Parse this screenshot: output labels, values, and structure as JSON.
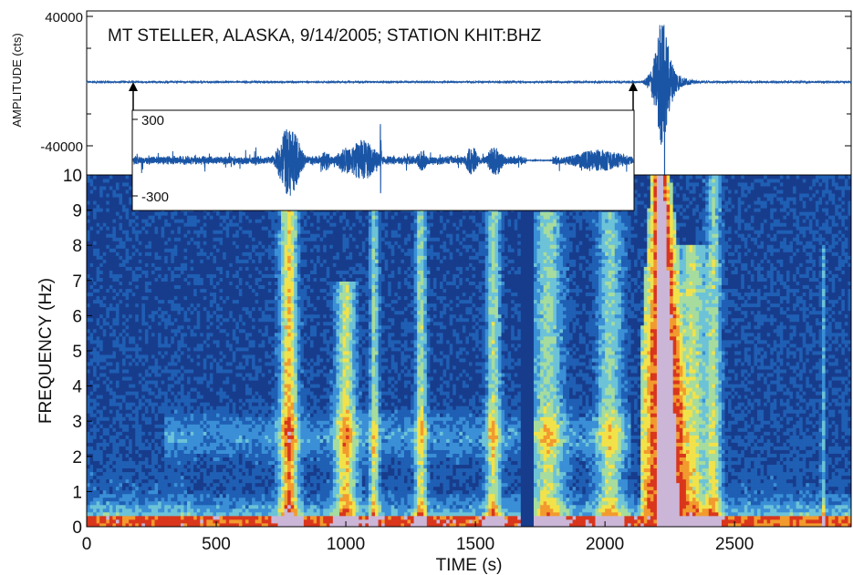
{
  "title": "MT STELLER, ALASKA, 9/14/2005;  STATION KHIT:BHZ",
  "chart_data": [
    {
      "type": "line",
      "panel": "seismogram",
      "ylabel": "AMPLITUDE (cts)",
      "ylim": [
        -40000,
        40000
      ],
      "xlim": [
        0,
        2950
      ],
      "yticks": [
        {
          "value": 40000,
          "label": "40000"
        },
        {
          "value": -40000,
          "label": "-40000"
        }
      ],
      "envelope": {
        "t": [
          0,
          2140,
          2160,
          2180,
          2200,
          2210,
          2220,
          2230,
          2245,
          2260,
          2280,
          2300,
          2330,
          2360,
          2950
        ],
        "amp": [
          400,
          400,
          2500,
          9000,
          22000,
          38000,
          40000,
          36000,
          22000,
          12000,
          6000,
          3000,
          1500,
          600,
          400
        ]
      },
      "vertical_lines": [
        {
          "t": 2230,
          "from": -40000,
          "to": 0
        }
      ],
      "inset_window": [
        180,
        2100
      ]
    },
    {
      "type": "line",
      "panel": "inset-zoom",
      "ylim": [
        -300,
        300
      ],
      "xlim": [
        180,
        2100
      ],
      "yticks": [
        {
          "value": 300,
          "label": "300"
        },
        {
          "value": -300,
          "label": "-300"
        }
      ],
      "noise_level": 25,
      "bursts": [
        {
          "t": 780,
          "amp": 260,
          "width": 45
        },
        {
          "t": 1060,
          "amp": 150,
          "width": 60
        },
        {
          "t": 1000,
          "amp": 100,
          "width": 40
        },
        {
          "t": 1130,
          "amp": 280,
          "width": 3
        },
        {
          "t": 1480,
          "amp": 110,
          "width": 25
        },
        {
          "t": 1570,
          "amp": 120,
          "width": 30
        },
        {
          "t": 1290,
          "amp": 80,
          "width": 20
        },
        {
          "t": 920,
          "amp": 80,
          "width": 20
        },
        {
          "t": 1970,
          "amp": 80,
          "width": 120
        }
      ],
      "gap": [
        1690,
        1790
      ]
    },
    {
      "type": "heatmap",
      "panel": "spectrogram",
      "xlabel": "TIME (s)",
      "ylabel": "FREQUENCY (Hz)",
      "xlim": [
        0,
        2950
      ],
      "ylim": [
        0,
        10
      ],
      "xticks": [
        0,
        500,
        1000,
        1500,
        2000,
        2500
      ],
      "yticks": [
        0,
        1,
        2,
        3,
        4,
        5,
        6,
        7,
        8,
        9,
        10
      ],
      "colormap": [
        "#183c8c",
        "#1f5fb4",
        "#3a8fd6",
        "#6cc3d8",
        "#a6dc9e",
        "#f2e24a",
        "#f29a2e",
        "#d9361c",
        "#cbb6d8"
      ],
      "low_freq_band": {
        "max_hz": 0.35,
        "level": 0.82
      },
      "features": [
        {
          "t": 780,
          "width": 35,
          "fmax": 10,
          "level": 0.62
        },
        {
          "t": 1000,
          "width": 40,
          "fmax": 7,
          "level": 0.5
        },
        {
          "t": 1110,
          "width": 18,
          "fmax": 10,
          "level": 0.42
        },
        {
          "t": 1290,
          "width": 22,
          "fmax": 10,
          "level": 0.45
        },
        {
          "t": 1570,
          "width": 28,
          "fmax": 10,
          "level": 0.45
        },
        {
          "t": 1780,
          "width": 60,
          "fmax": 9,
          "level": 0.42
        },
        {
          "t": 2020,
          "width": 50,
          "fmax": 9,
          "level": 0.4
        },
        {
          "t": 2335,
          "width": 55,
          "fmax": 8,
          "level": 0.5
        },
        {
          "t": 2420,
          "width": 30,
          "fmax": 10,
          "level": 0.42
        },
        {
          "t": 2840,
          "width": 6,
          "fmax": 8,
          "level": 0.35
        }
      ],
      "gap": [
        1680,
        1720
      ],
      "event": {
        "t_start": 2140,
        "t_peak": 2215,
        "t_end": 2520,
        "f_top": 10
      }
    }
  ]
}
